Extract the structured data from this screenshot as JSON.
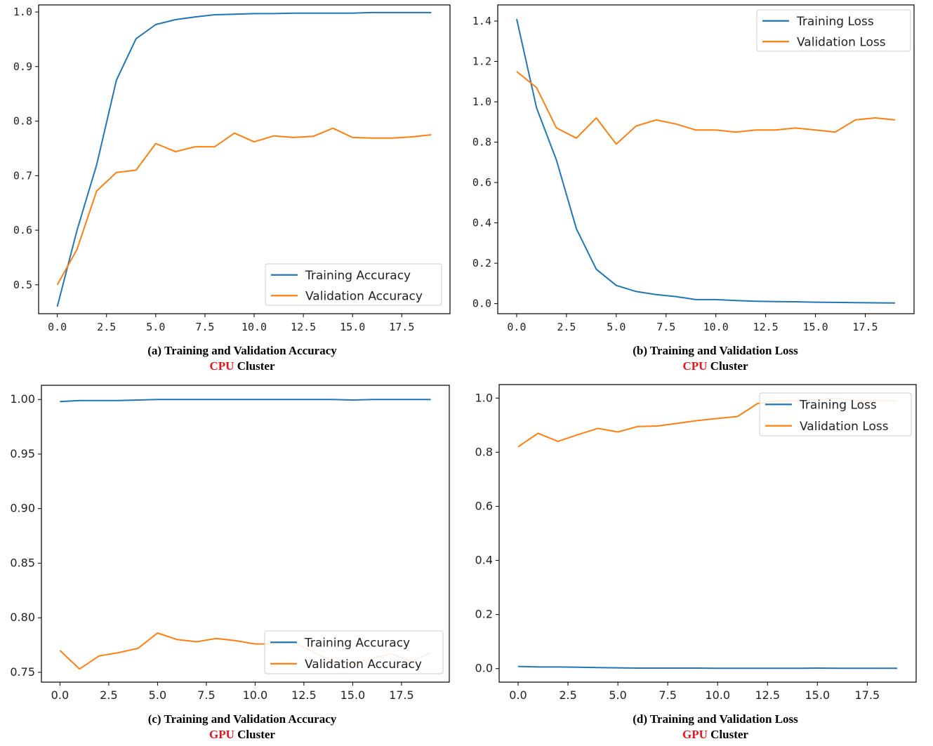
{
  "colors": {
    "training": "#1f77b4",
    "validation": "#ff7f0e",
    "highlight": "#e8141c"
  },
  "chart_data": [
    {
      "id": "a",
      "type": "line",
      "caption": {
        "title": "(a) Training and Validation Accuracy",
        "cluster": "CPU",
        "suffix": " Cluster"
      },
      "x": [
        0,
        1,
        2,
        3,
        4,
        5,
        6,
        7,
        8,
        9,
        10,
        11,
        12,
        13,
        14,
        15,
        16,
        17,
        18,
        19
      ],
      "series": [
        {
          "name": "Training Accuracy",
          "values": [
            0.46,
            0.6,
            0.72,
            0.875,
            0.951,
            0.977,
            0.986,
            0.991,
            0.995,
            0.996,
            0.997,
            0.997,
            0.998,
            0.998,
            0.998,
            0.998,
            0.999,
            0.999,
            0.999,
            0.999
          ]
        },
        {
          "name": "Validation Accuracy",
          "values": [
            0.5,
            0.565,
            0.672,
            0.706,
            0.71,
            0.759,
            0.744,
            0.753,
            0.753,
            0.778,
            0.762,
            0.773,
            0.77,
            0.772,
            0.787,
            0.77,
            0.769,
            0.769,
            0.771,
            0.775
          ]
        }
      ],
      "xlim": [
        -0.95,
        19.95
      ],
      "ylim": [
        0.447,
        1.013
      ],
      "xticks": [
        0,
        2.5,
        5,
        7.5,
        10,
        12.5,
        15,
        17.5
      ],
      "xtick_labels": [
        "0.0",
        "2.5",
        "5.0",
        "7.5",
        "10.0",
        "12.5",
        "15.0",
        "17.5"
      ],
      "yticks": [
        0.5,
        0.6,
        0.7,
        0.8,
        0.9,
        1.0
      ],
      "ytick_labels": [
        "0.5",
        "0.6",
        "0.7",
        "0.8",
        "0.9",
        "1.0"
      ],
      "legend": "lower-right"
    },
    {
      "id": "b",
      "type": "line",
      "caption": {
        "title": "(b) Training and Validation Loss",
        "cluster": "CPU",
        "suffix": " Cluster"
      },
      "x": [
        0,
        1,
        2,
        3,
        4,
        5,
        6,
        7,
        8,
        9,
        10,
        11,
        12,
        13,
        14,
        15,
        16,
        17,
        18,
        19
      ],
      "series": [
        {
          "name": "Training Loss",
          "values": [
            1.41,
            0.97,
            0.71,
            0.37,
            0.17,
            0.09,
            0.06,
            0.045,
            0.035,
            0.02,
            0.02,
            0.015,
            0.012,
            0.01,
            0.009,
            0.007,
            0.006,
            0.005,
            0.004,
            0.003
          ]
        },
        {
          "name": "Validation Loss",
          "values": [
            1.15,
            1.07,
            0.87,
            0.82,
            0.92,
            0.79,
            0.88,
            0.91,
            0.89,
            0.86,
            0.86,
            0.85,
            0.86,
            0.86,
            0.87,
            0.86,
            0.85,
            0.91,
            0.92,
            0.91
          ]
        }
      ],
      "xlim": [
        -0.95,
        19.95
      ],
      "ylim": [
        -0.05,
        1.48
      ],
      "xticks": [
        0,
        2.5,
        5,
        7.5,
        10,
        12.5,
        15,
        17.5
      ],
      "xtick_labels": [
        "0.0",
        "2.5",
        "5.0",
        "7.5",
        "10.0",
        "12.5",
        "15.0",
        "17.5"
      ],
      "yticks": [
        0.0,
        0.2,
        0.4,
        0.6,
        0.8,
        1.0,
        1.2,
        1.4
      ],
      "ytick_labels": [
        "0.0",
        "0.2",
        "0.4",
        "0.6",
        "0.8",
        "1.0",
        "1.2",
        "1.4"
      ],
      "legend": "upper-right"
    },
    {
      "id": "c",
      "type": "line",
      "caption": {
        "title": "(c) Training and Validation Accuracy",
        "cluster": "GPU",
        "suffix": " Cluster"
      },
      "x": [
        0,
        1,
        2,
        3,
        4,
        5,
        6,
        7,
        8,
        9,
        10,
        11,
        12,
        13,
        14,
        15,
        16,
        17,
        18,
        19
      ],
      "series": [
        {
          "name": "Training Accuracy",
          "values": [
            0.998,
            0.999,
            0.999,
            0.999,
            0.9995,
            1.0,
            1.0,
            1.0,
            1.0,
            1.0,
            1.0,
            1.0,
            1.0,
            1.0,
            1.0,
            0.9995,
            1.0,
            1.0,
            1.0,
            1.0
          ]
        },
        {
          "name": "Validation Accuracy",
          "values": [
            0.77,
            0.753,
            0.765,
            0.768,
            0.772,
            0.786,
            0.78,
            0.778,
            0.781,
            0.779,
            0.776,
            0.776,
            0.778,
            0.768,
            0.76,
            0.758,
            0.763,
            0.767,
            0.76,
            0.768
          ]
        }
      ],
      "xlim": [
        -0.95,
        19.95
      ],
      "ylim": [
        0.741,
        1.013
      ],
      "xticks": [
        0,
        2.5,
        5,
        7.5,
        10,
        12.5,
        15,
        17.5
      ],
      "xtick_labels": [
        "0.0",
        "2.5",
        "5.0",
        "7.5",
        "10.0",
        "12.5",
        "15.0",
        "17.5"
      ],
      "yticks": [
        0.75,
        0.8,
        0.85,
        0.9,
        0.95,
        1.0
      ],
      "ytick_labels": [
        "0.75",
        "0.80",
        "0.85",
        "0.90",
        "0.95",
        "1.00"
      ],
      "legend": "lower-right"
    },
    {
      "id": "d",
      "type": "line",
      "caption": {
        "title": "(d) Training and Validation Loss",
        "cluster": "GPU",
        "suffix": " Cluster"
      },
      "x": [
        0,
        1,
        2,
        3,
        4,
        5,
        6,
        7,
        8,
        9,
        10,
        11,
        12,
        13,
        14,
        15,
        16,
        17,
        18,
        19
      ],
      "series": [
        {
          "name": "Training Loss",
          "values": [
            0.008,
            0.006,
            0.006,
            0.005,
            0.004,
            0.003,
            0.002,
            0.002,
            0.002,
            0.002,
            0.001,
            0.001,
            0.001,
            0.001,
            0.001,
            0.002,
            0.001,
            0.001,
            0.001,
            0.001
          ]
        },
        {
          "name": "Validation Loss",
          "values": [
            0.82,
            0.87,
            0.84,
            0.865,
            0.888,
            0.875,
            0.895,
            0.897,
            0.907,
            0.917,
            0.925,
            0.932,
            0.98,
            0.99,
            0.99,
            0.995,
            1.0,
            0.99,
            0.99,
            0.99
          ]
        }
      ],
      "xlim": [
        -0.95,
        19.95
      ],
      "ylim": [
        -0.05,
        1.05
      ],
      "xticks": [
        0,
        2.5,
        5,
        7.5,
        10,
        12.5,
        15,
        17.5
      ],
      "xtick_labels": [
        "0.0",
        "2.5",
        "5.0",
        "7.5",
        "10.0",
        "12.5",
        "15.0",
        "17.5"
      ],
      "yticks": [
        0.0,
        0.2,
        0.4,
        0.6,
        0.8,
        1.0
      ],
      "ytick_labels": [
        "0.0",
        "0.2",
        "0.4",
        "0.6",
        "0.8",
        "1.0"
      ],
      "legend": "upper-right"
    }
  ]
}
